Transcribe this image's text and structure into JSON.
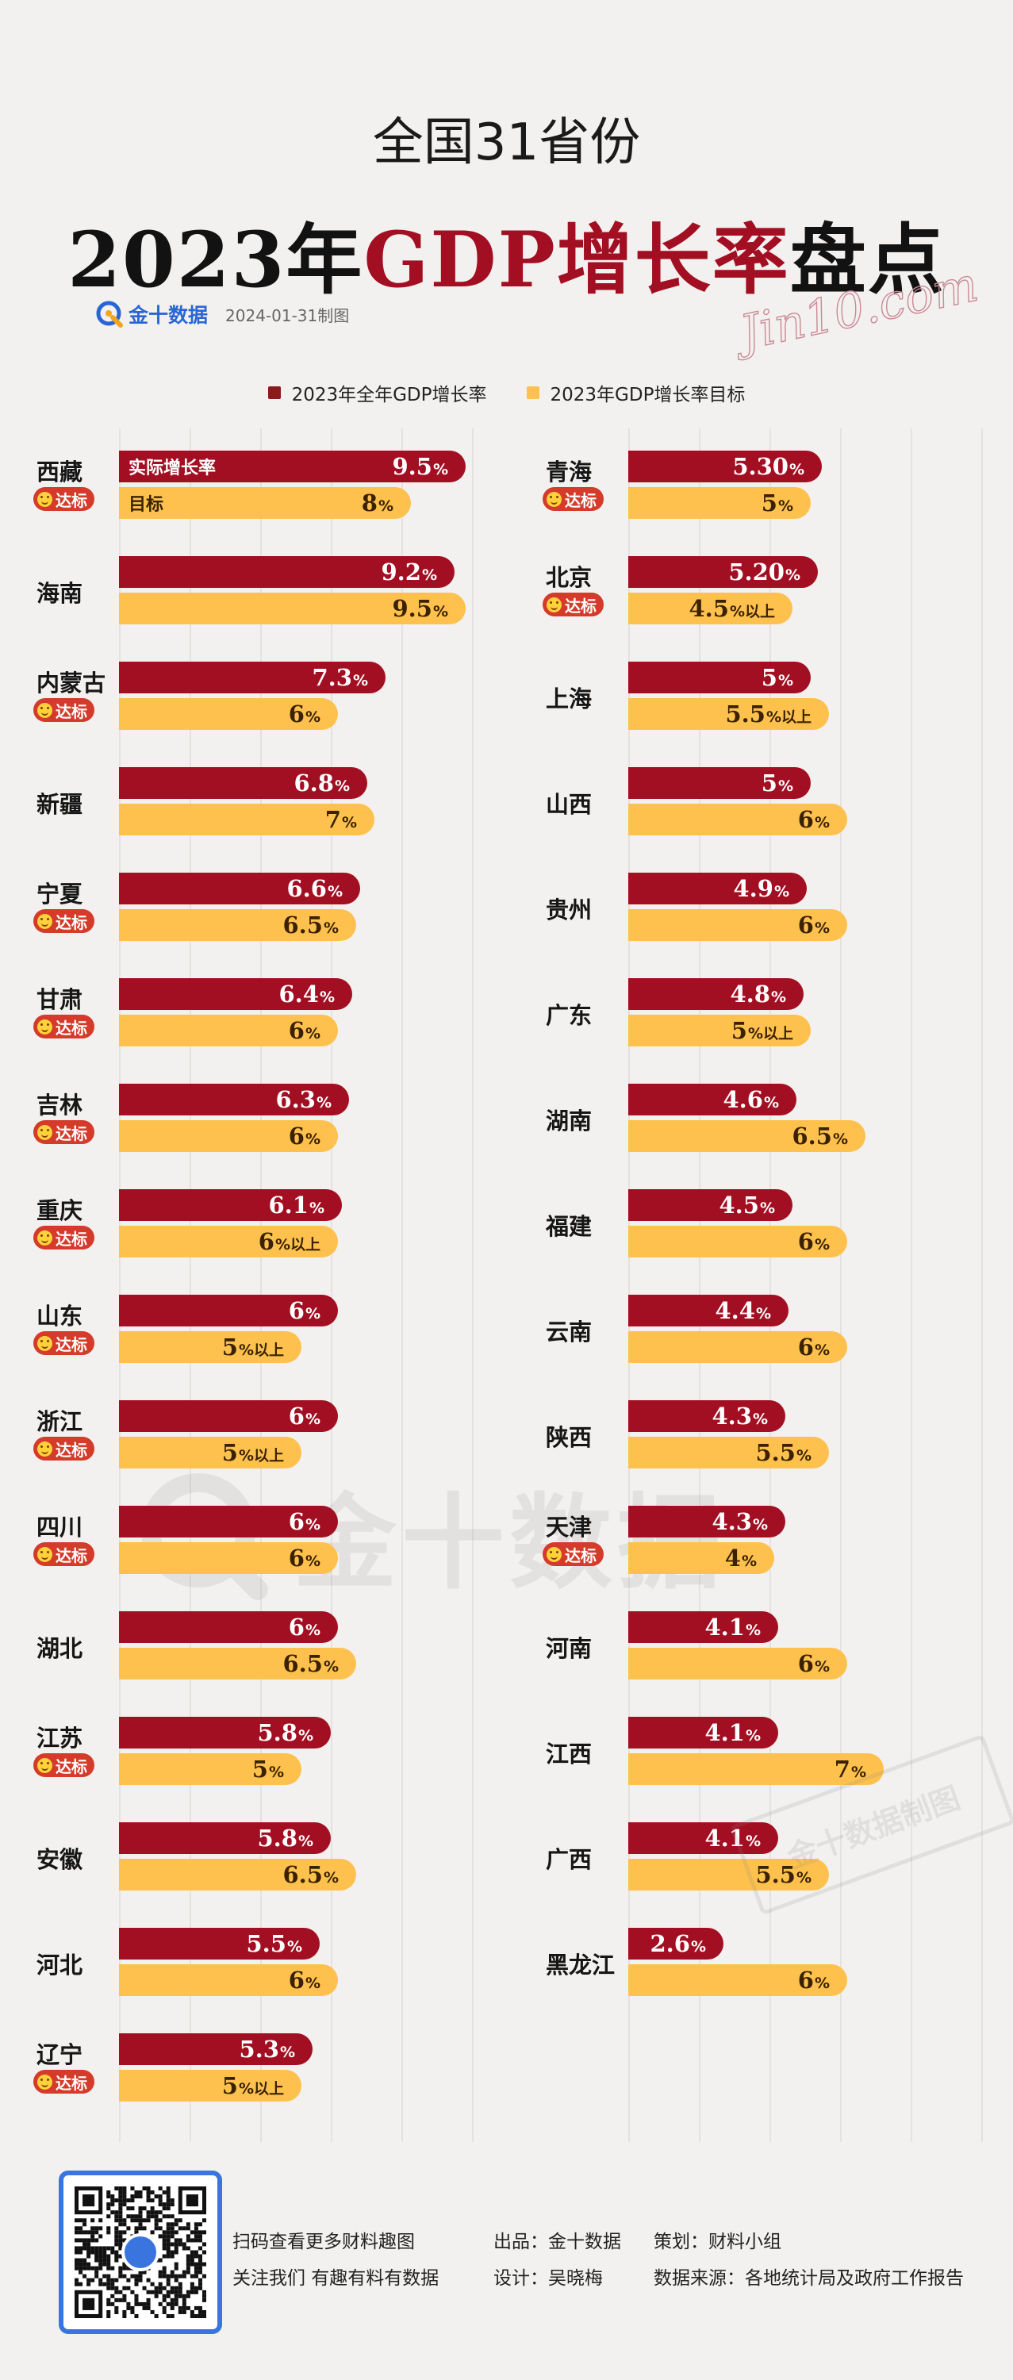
{
  "header": {
    "title_line1": "全国31省份",
    "title_year": "2023年",
    "title_highlight": "GDP增长率",
    "title_tail": "盘点",
    "signature": "Jin10.com",
    "brand_name": "金十数据",
    "date_note": "2024-01-31制图"
  },
  "legend": [
    {
      "label": "2023年全年GDP增长率",
      "color": "#8b1a1a"
    },
    {
      "label": "2023年GDP增长率目标",
      "color": "#fec14d"
    }
  ],
  "bar_labels": {
    "actual": "实际增长率",
    "target": "目标"
  },
  "badge_text": "达标",
  "watermark_text": "金十数据",
  "stamp_text": "金十数据制图",
  "colors": {
    "actual": "#a30f22",
    "target": "#fec14d",
    "badge": "#d43b2a",
    "background": "#f3f1ef"
  },
  "chart_data": {
    "type": "bar",
    "title": "2023年GDP增长率盘点",
    "series": [
      {
        "name": "2023年全年GDP增长率",
        "unit": "%"
      },
      {
        "name": "2023年GDP增长率目标",
        "unit": "%"
      }
    ],
    "left_column": [
      {
        "province": "西藏",
        "actual": 9.5,
        "actual_text": "9.5",
        "target": 8,
        "target_text": "8",
        "target_suffix": "%",
        "met": true
      },
      {
        "province": "海南",
        "actual": 9.2,
        "actual_text": "9.2",
        "target": 9.5,
        "target_text": "9.5",
        "target_suffix": "%",
        "met": false
      },
      {
        "province": "内蒙古",
        "actual": 7.3,
        "actual_text": "7.3",
        "target": 6,
        "target_text": "6",
        "target_suffix": "%",
        "met": true
      },
      {
        "province": "新疆",
        "actual": 6.8,
        "actual_text": "6.8",
        "target": 7,
        "target_text": "7",
        "target_suffix": "%",
        "met": false
      },
      {
        "province": "宁夏",
        "actual": 6.6,
        "actual_text": "6.6",
        "target": 6.5,
        "target_text": "6.5",
        "target_suffix": "%",
        "met": true
      },
      {
        "province": "甘肃",
        "actual": 6.4,
        "actual_text": "6.4",
        "target": 6,
        "target_text": "6",
        "target_suffix": "%",
        "met": true
      },
      {
        "province": "吉林",
        "actual": 6.3,
        "actual_text": "6.3",
        "target": 6,
        "target_text": "6",
        "target_suffix": "%",
        "met": true
      },
      {
        "province": "重庆",
        "actual": 6.1,
        "actual_text": "6.1",
        "target": 6,
        "target_text": "6",
        "target_suffix": "%以上",
        "met": true
      },
      {
        "province": "山东",
        "actual": 6,
        "actual_text": "6",
        "target": 5,
        "target_text": "5",
        "target_suffix": "%以上",
        "met": true
      },
      {
        "province": "浙江",
        "actual": 6,
        "actual_text": "6",
        "target": 5,
        "target_text": "5",
        "target_suffix": "%以上",
        "met": true
      },
      {
        "province": "四川",
        "actual": 6,
        "actual_text": "6",
        "target": 6,
        "target_text": "6",
        "target_suffix": "%",
        "met": true
      },
      {
        "province": "湖北",
        "actual": 6,
        "actual_text": "6",
        "target": 6.5,
        "target_text": "6.5",
        "target_suffix": "%",
        "met": false
      },
      {
        "province": "江苏",
        "actual": 5.8,
        "actual_text": "5.8",
        "target": 5,
        "target_text": "5",
        "target_suffix": "%",
        "met": true
      },
      {
        "province": "安徽",
        "actual": 5.8,
        "actual_text": "5.8",
        "target": 6.5,
        "target_text": "6.5",
        "target_suffix": "%",
        "met": false
      },
      {
        "province": "河北",
        "actual": 5.5,
        "actual_text": "5.5",
        "target": 6,
        "target_text": "6",
        "target_suffix": "%",
        "met": false
      },
      {
        "province": "辽宁",
        "actual": 5.3,
        "actual_text": "5.3",
        "target": 5,
        "target_text": "5",
        "target_suffix": "%以上",
        "met": true
      }
    ],
    "right_column": [
      {
        "province": "青海",
        "actual": 5.3,
        "actual_text": "5.30",
        "target": 5,
        "target_text": "5",
        "target_suffix": "%",
        "met": true
      },
      {
        "province": "北京",
        "actual": 5.2,
        "actual_text": "5.20",
        "target": 4.5,
        "target_text": "4.5",
        "target_suffix": "%以上",
        "met": true
      },
      {
        "province": "上海",
        "actual": 5,
        "actual_text": "5",
        "target": 5.5,
        "target_text": "5.5",
        "target_suffix": "%以上",
        "met": false
      },
      {
        "province": "山西",
        "actual": 5,
        "actual_text": "5",
        "target": 6,
        "target_text": "6",
        "target_suffix": "%",
        "met": false
      },
      {
        "province": "贵州",
        "actual": 4.9,
        "actual_text": "4.9",
        "target": 6,
        "target_text": "6",
        "target_suffix": "%",
        "met": false
      },
      {
        "province": "广东",
        "actual": 4.8,
        "actual_text": "4.8",
        "target": 5,
        "target_text": "5",
        "target_suffix": "%以上",
        "met": false
      },
      {
        "province": "湖南",
        "actual": 4.6,
        "actual_text": "4.6",
        "target": 6.5,
        "target_text": "6.5",
        "target_suffix": "%",
        "met": false
      },
      {
        "province": "福建",
        "actual": 4.5,
        "actual_text": "4.5",
        "target": 6,
        "target_text": "6",
        "target_suffix": "%",
        "met": false
      },
      {
        "province": "云南",
        "actual": 4.4,
        "actual_text": "4.4",
        "target": 6,
        "target_text": "6",
        "target_suffix": "%",
        "met": false
      },
      {
        "province": "陕西",
        "actual": 4.3,
        "actual_text": "4.3",
        "target": 5.5,
        "target_text": "5.5",
        "target_suffix": "%",
        "met": false
      },
      {
        "province": "天津",
        "actual": 4.3,
        "actual_text": "4.3",
        "target": 4,
        "target_text": "4",
        "target_suffix": "%",
        "met": true
      },
      {
        "province": "河南",
        "actual": 4.1,
        "actual_text": "4.1",
        "target": 6,
        "target_text": "6",
        "target_suffix": "%",
        "met": false
      },
      {
        "province": "江西",
        "actual": 4.1,
        "actual_text": "4.1",
        "target": 7,
        "target_text": "7",
        "target_suffix": "%",
        "met": false
      },
      {
        "province": "广西",
        "actual": 4.1,
        "actual_text": "4.1",
        "target": 5.5,
        "target_text": "5.5",
        "target_suffix": "%",
        "met": false
      },
      {
        "province": "黑龙江",
        "actual": 2.6,
        "actual_text": "2.6",
        "target": 6,
        "target_text": "6",
        "target_suffix": "%",
        "met": false
      }
    ]
  },
  "footer": {
    "qr_caption_1": "扫码查看更多财料趣图",
    "qr_caption_2": "关注我们 有趣有料有数据",
    "producer": "出品：金十数据",
    "designer": "设计：吴晓梅",
    "planner": "策划：财料小组",
    "source": "数据来源：各地统计局及政府工作报告"
  }
}
